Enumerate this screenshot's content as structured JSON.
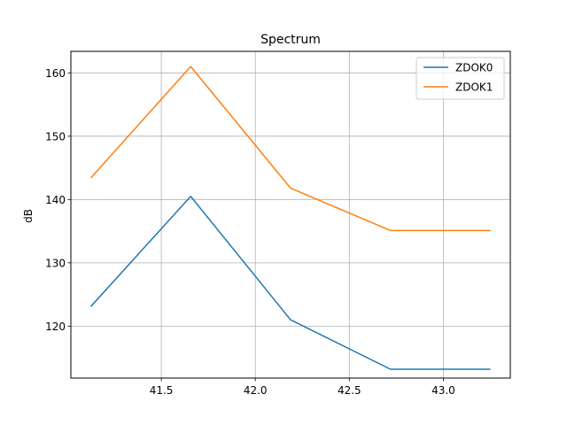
{
  "chart_data": {
    "type": "line",
    "title": "Spectrum",
    "xlabel": "",
    "ylabel": "dB",
    "x": [
      41.125,
      41.65625,
      42.1875,
      42.71875,
      43.25
    ],
    "series": [
      {
        "name": "ZDOK0",
        "color": "#1f77b4",
        "values": [
          123.1,
          140.5,
          121.0,
          113.2,
          113.2
        ]
      },
      {
        "name": "ZDOK1",
        "color": "#ff7f0e",
        "values": [
          143.4,
          161.0,
          141.8,
          135.1,
          135.1
        ]
      }
    ],
    "xlim": [
      41.019,
      43.356
    ],
    "ylim": [
      111.8,
      163.4
    ],
    "xticks": [
      41.5,
      42.0,
      42.5,
      43.0
    ],
    "xtick_labels": [
      "41.5",
      "42.0",
      "42.5",
      "43.0"
    ],
    "yticks": [
      120,
      130,
      140,
      150,
      160
    ],
    "ytick_labels": [
      "120",
      "130",
      "140",
      "150",
      "160"
    ],
    "grid": true,
    "legend_position": "top-right"
  }
}
